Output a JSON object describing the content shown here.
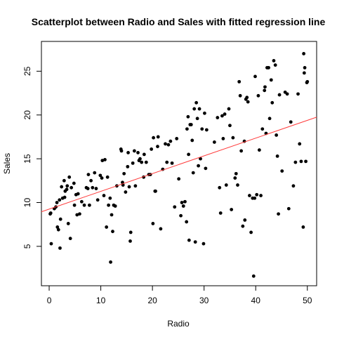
{
  "chart_data": {
    "type": "scatter",
    "title": "Scatterplot between Radio and Sales with fitted regression line",
    "xlabel": "Radio",
    "ylabel": "Sales",
    "xlim": [
      -1.5,
      51.8
    ],
    "ylim": [
      0.5,
      28.4
    ],
    "xticks": [
      0,
      10,
      20,
      30,
      40,
      50
    ],
    "yticks": [
      5,
      10,
      15,
      20,
      25
    ],
    "point_color": "#000000",
    "line_color": "#ff3b3b",
    "regression_line": {
      "x": [
        -1.5,
        51.8
      ],
      "y": [
        8.95,
        19.75
      ]
    },
    "points": [
      [
        0.2,
        8.7
      ],
      [
        0.3,
        8.8
      ],
      [
        0.4,
        5.3
      ],
      [
        1.0,
        9.3
      ],
      [
        1.3,
        9.5
      ],
      [
        1.5,
        10.0
      ],
      [
        1.6,
        7.2
      ],
      [
        1.8,
        6.9
      ],
      [
        2.0,
        10.3
      ],
      [
        2.1,
        4.8
      ],
      [
        2.2,
        8.1
      ],
      [
        2.4,
        11.8
      ],
      [
        2.6,
        10.5
      ],
      [
        2.9,
        12.5
      ],
      [
        3.0,
        10.6
      ],
      [
        3.1,
        11.3
      ],
      [
        3.4,
        11.5
      ],
      [
        3.5,
        11.9
      ],
      [
        3.7,
        7.6
      ],
      [
        3.9,
        12.9
      ],
      [
        4.1,
        5.9
      ],
      [
        4.3,
        11.7
      ],
      [
        4.8,
        12.2
      ],
      [
        4.9,
        9.7
      ],
      [
        5.2,
        10.9
      ],
      [
        5.4,
        8.6
      ],
      [
        5.6,
        11.0
      ],
      [
        5.9,
        8.7
      ],
      [
        6.3,
        10.1
      ],
      [
        6.8,
        9.7
      ],
      [
        7.2,
        11.7
      ],
      [
        7.5,
        11.6
      ],
      [
        7.6,
        13.2
      ],
      [
        7.8,
        9.7
      ],
      [
        8.1,
        12.5
      ],
      [
        8.4,
        11.7
      ],
      [
        8.8,
        13.4
      ],
      [
        9.1,
        11.6
      ],
      [
        9.4,
        10.3
      ],
      [
        9.9,
        13.1
      ],
      [
        10.2,
        12.8
      ],
      [
        10.3,
        14.8
      ],
      [
        10.6,
        10.8
      ],
      [
        10.8,
        14.9
      ],
      [
        11.1,
        7.2
      ],
      [
        11.3,
        12.9
      ],
      [
        11.5,
        9.7
      ],
      [
        11.8,
        10.5
      ],
      [
        11.9,
        3.2
      ],
      [
        12.1,
        8.6
      ],
      [
        12.3,
        6.7
      ],
      [
        12.5,
        9.7
      ],
      [
        12.8,
        9.6
      ],
      [
        13.1,
        11.9
      ],
      [
        13.9,
        16.1
      ],
      [
        14.0,
        15.9
      ],
      [
        14.2,
        12.3
      ],
      [
        14.3,
        12.0
      ],
      [
        14.5,
        13.3
      ],
      [
        14.8,
        11.2
      ],
      [
        15.2,
        14.1
      ],
      [
        15.3,
        15.7
      ],
      [
        15.5,
        11.8
      ],
      [
        15.7,
        5.6
      ],
      [
        15.8,
        6.6
      ],
      [
        16.2,
        14.5
      ],
      [
        16.5,
        15.9
      ],
      [
        16.7,
        11.9
      ],
      [
        17.2,
        15.7
      ],
      [
        17.4,
        14.8
      ],
      [
        17.6,
        15.0
      ],
      [
        17.9,
        14.6
      ],
      [
        18.3,
        12.9
      ],
      [
        18.4,
        15.5
      ],
      [
        18.8,
        14.6
      ],
      [
        19.3,
        13.2
      ],
      [
        19.6,
        13.2
      ],
      [
        19.8,
        16.1
      ],
      [
        20.1,
        7.6
      ],
      [
        20.2,
        17.4
      ],
      [
        20.5,
        11.3
      ],
      [
        20.6,
        11.3
      ],
      [
        21.0,
        16.4
      ],
      [
        21.1,
        17.5
      ],
      [
        21.6,
        7.0
      ],
      [
        22.0,
        13.8
      ],
      [
        22.5,
        16.7
      ],
      [
        22.8,
        14.6
      ],
      [
        23.1,
        16.6
      ],
      [
        23.5,
        17.0
      ],
      [
        23.8,
        14.5
      ],
      [
        24.3,
        9.5
      ],
      [
        24.7,
        17.3
      ],
      [
        25.1,
        12.7
      ],
      [
        25.5,
        8.5
      ],
      [
        25.7,
        10.0
      ],
      [
        26.0,
        9.6
      ],
      [
        26.3,
        10.1
      ],
      [
        26.6,
        7.8
      ],
      [
        26.7,
        18.4
      ],
      [
        26.9,
        19.8
      ],
      [
        27.0,
        15.5
      ],
      [
        27.1,
        5.7
      ],
      [
        27.3,
        18.9
      ],
      [
        27.5,
        18.9
      ],
      [
        27.7,
        17.1
      ],
      [
        27.9,
        13.4
      ],
      [
        28.1,
        20.7
      ],
      [
        28.3,
        5.5
      ],
      [
        28.5,
        21.4
      ],
      [
        28.7,
        19.6
      ],
      [
        28.9,
        14.2
      ],
      [
        29.1,
        20.7
      ],
      [
        29.3,
        15.0
      ],
      [
        29.6,
        18.4
      ],
      [
        29.9,
        5.3
      ],
      [
        30.1,
        20.2
      ],
      [
        30.3,
        13.9
      ],
      [
        30.5,
        18.3
      ],
      [
        32.0,
        16.9
      ],
      [
        32.6,
        19.7
      ],
      [
        33.0,
        11.7
      ],
      [
        33.2,
        8.8
      ],
      [
        33.5,
        19.9
      ],
      [
        33.7,
        17.3
      ],
      [
        34.0,
        20.1
      ],
      [
        34.3,
        12.0
      ],
      [
        34.8,
        20.7
      ],
      [
        35.0,
        18.8
      ],
      [
        35.3,
        9.2
      ],
      [
        35.6,
        17.4
      ],
      [
        36.0,
        12.8
      ],
      [
        36.2,
        13.3
      ],
      [
        36.5,
        12.0
      ],
      [
        36.8,
        23.8
      ],
      [
        37.0,
        22.2
      ],
      [
        37.2,
        15.9
      ],
      [
        37.5,
        7.3
      ],
      [
        37.8,
        17.0
      ],
      [
        37.9,
        8.0
      ],
      [
        38.1,
        21.8
      ],
      [
        38.3,
        22.0
      ],
      [
        38.5,
        21.5
      ],
      [
        38.8,
        10.8
      ],
      [
        39.1,
        6.6
      ],
      [
        39.4,
        10.5
      ],
      [
        39.6,
        1.6
      ],
      [
        39.8,
        10.5
      ],
      [
        39.9,
        24.4
      ],
      [
        40.2,
        10.9
      ],
      [
        40.5,
        22.2
      ],
      [
        40.7,
        16.0
      ],
      [
        41.0,
        10.8
      ],
      [
        41.3,
        18.4
      ],
      [
        41.7,
        22.8
      ],
      [
        41.8,
        23.2
      ],
      [
        42.0,
        17.9
      ],
      [
        42.2,
        25.4
      ],
      [
        42.5,
        25.4
      ],
      [
        42.7,
        19.6
      ],
      [
        43.0,
        24.0
      ],
      [
        43.2,
        21.4
      ],
      [
        43.5,
        26.2
      ],
      [
        43.8,
        25.7
      ],
      [
        44.0,
        17.7
      ],
      [
        44.2,
        15.3
      ],
      [
        44.4,
        8.7
      ],
      [
        44.6,
        22.3
      ],
      [
        45.1,
        13.6
      ],
      [
        45.7,
        22.6
      ],
      [
        46.1,
        22.4
      ],
      [
        46.4,
        9.3
      ],
      [
        46.8,
        19.2
      ],
      [
        47.3,
        11.9
      ],
      [
        47.7,
        14.6
      ],
      [
        48.2,
        22.4
      ],
      [
        48.5,
        16.7
      ],
      [
        48.8,
        14.7
      ],
      [
        49.2,
        7.2
      ],
      [
        49.3,
        27.0
      ],
      [
        49.4,
        24.8
      ],
      [
        49.5,
        25.4
      ],
      [
        49.7,
        14.7
      ],
      [
        49.9,
        23.7
      ],
      [
        50.0,
        23.8
      ]
    ]
  }
}
